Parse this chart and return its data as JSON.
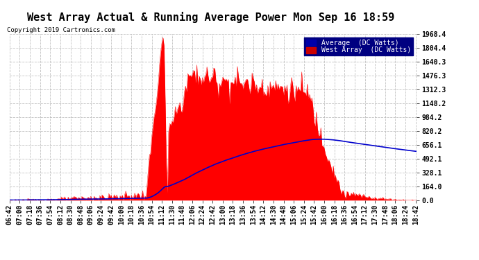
{
  "title": "West Array Actual & Running Average Power Mon Sep 16 18:59",
  "copyright": "Copyright 2019 Cartronics.com",
  "yticks": [
    0.0,
    164.0,
    328.1,
    492.1,
    656.1,
    820.2,
    984.2,
    1148.2,
    1312.3,
    1476.3,
    1640.3,
    1804.4,
    1968.4
  ],
  "ymax": 1968.4,
  "fill_color": "#ff0000",
  "avg_color": "#0000cc",
  "background_color": "#ffffff",
  "grid_color": "#bbbbbb",
  "title_fontsize": 11,
  "tick_fontsize": 7
}
